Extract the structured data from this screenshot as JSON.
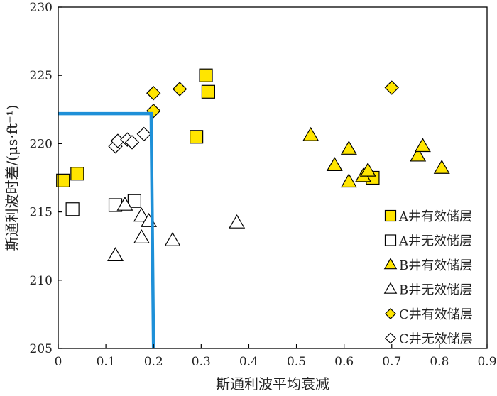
{
  "chart_data": {
    "type": "scatter",
    "title": "",
    "xlabel": "斯通利波平均衰减",
    "ylabel": "斯通利波时差/(μs·ft⁻¹)",
    "xlim": [
      0,
      0.9
    ],
    "ylim": [
      205,
      230
    ],
    "x_ticks": [
      0,
      0.1,
      0.2,
      0.3,
      0.4,
      0.5,
      0.6,
      0.7,
      0.8,
      0.9
    ],
    "x_tick_labels": [
      "0",
      "0.1",
      "0.2",
      "0.3",
      "0.4",
      "0.5",
      "0.6",
      "0.7",
      "0.8",
      "0.9"
    ],
    "y_ticks": [
      205,
      210,
      215,
      220,
      225,
      230
    ],
    "y_tick_labels": [
      "205",
      "210",
      "215",
      "220",
      "225",
      "230"
    ],
    "grid": false,
    "legend_position": "bottom-right",
    "series": [
      {
        "name": "A井有效储层",
        "marker": "square",
        "filled": true,
        "color": "#FFE500",
        "points": [
          [
            0.01,
            217.3
          ],
          [
            0.04,
            217.8
          ],
          [
            0.29,
            220.5
          ],
          [
            0.31,
            225.0
          ],
          [
            0.315,
            223.8
          ],
          [
            0.66,
            217.5
          ]
        ]
      },
      {
        "name": "A井无效储层",
        "marker": "square",
        "filled": false,
        "color": "#FFFFFF",
        "points": [
          [
            0.03,
            215.2
          ],
          [
            0.12,
            215.5
          ],
          [
            0.16,
            215.8
          ]
        ]
      },
      {
        "name": "B井有效储层",
        "marker": "triangle",
        "filled": true,
        "color": "#FFE500",
        "points": [
          [
            0.53,
            220.6
          ],
          [
            0.58,
            218.4
          ],
          [
            0.61,
            219.6
          ],
          [
            0.61,
            217.2
          ],
          [
            0.64,
            217.6
          ],
          [
            0.65,
            218.0
          ],
          [
            0.755,
            219.1
          ],
          [
            0.765,
            219.8
          ],
          [
            0.805,
            218.2
          ]
        ]
      },
      {
        "name": "B井无效储层",
        "marker": "triangle",
        "filled": false,
        "color": "#FFFFFF",
        "points": [
          [
            0.12,
            211.8
          ],
          [
            0.14,
            215.5
          ],
          [
            0.175,
            214.7
          ],
          [
            0.19,
            214.3
          ],
          [
            0.175,
            213.1
          ],
          [
            0.24,
            212.9
          ],
          [
            0.375,
            214.2
          ]
        ]
      },
      {
        "name": "C井有效储层",
        "marker": "diamond",
        "filled": true,
        "color": "#FFE500",
        "points": [
          [
            0.2,
            223.7
          ],
          [
            0.255,
            224.0
          ],
          [
            0.2,
            222.4
          ],
          [
            0.7,
            224.1
          ]
        ]
      },
      {
        "name": "C井无效储层",
        "marker": "diamond",
        "filled": false,
        "color": "#FFFFFF",
        "points": [
          [
            0.12,
            219.8
          ],
          [
            0.125,
            220.2
          ],
          [
            0.145,
            220.3
          ],
          [
            0.155,
            220.1
          ],
          [
            0.18,
            220.7
          ]
        ]
      }
    ],
    "boundary_line": {
      "color": "#1E90D8",
      "points": [
        [
          0,
          222.2
        ],
        [
          0.195,
          222.2
        ],
        [
          0.2,
          205
        ]
      ]
    },
    "marker_edge_color": "#000000"
  }
}
